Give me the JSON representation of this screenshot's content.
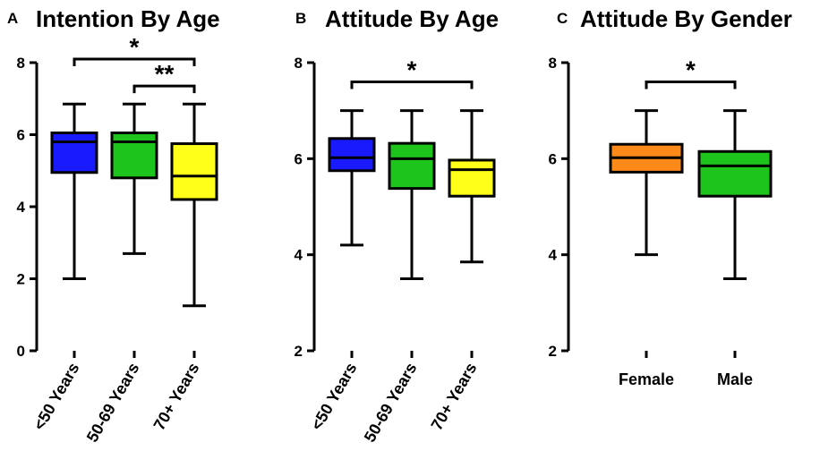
{
  "chart_data": [
    {
      "type": "box",
      "panel_letter": "A",
      "title": "Intention By Age",
      "ylim": [
        0,
        8
      ],
      "yticks": [
        0,
        2,
        4,
        6,
        8
      ],
      "categories": [
        "<50 Years",
        "50-69 Years",
        "70+ Years"
      ],
      "boxes": [
        {
          "name": "<50 Years",
          "min": 2.0,
          "q1": 4.95,
          "median": 5.8,
          "q3": 6.05,
          "max": 6.85,
          "color": "#1a1aff"
        },
        {
          "name": "50-69 Years",
          "min": 2.7,
          "q1": 4.8,
          "median": 5.8,
          "q3": 6.05,
          "max": 6.85,
          "color": "#1cc41c"
        },
        {
          "name": "70+ Years",
          "min": 1.25,
          "q1": 4.2,
          "median": 4.85,
          "q3": 5.75,
          "max": 6.85,
          "color": "#ffff1a"
        }
      ],
      "significance": [
        {
          "from": 0,
          "to": 2,
          "label": "*",
          "y": 8.1
        },
        {
          "from": 1,
          "to": 2,
          "label": "**",
          "y": 7.35
        }
      ]
    },
    {
      "type": "box",
      "panel_letter": "B",
      "title": "Attitude By Age",
      "ylim": [
        2,
        8
      ],
      "yticks": [
        2,
        4,
        6,
        8
      ],
      "categories": [
        "<50 Years",
        "50-69 Years",
        "70+ Years"
      ],
      "boxes": [
        {
          "name": "<50 Years",
          "min": 4.2,
          "q1": 5.75,
          "median": 6.02,
          "q3": 6.42,
          "max": 7.0,
          "color": "#1a1aff"
        },
        {
          "name": "50-69 Years",
          "min": 3.5,
          "q1": 5.38,
          "median": 6.0,
          "q3": 6.32,
          "max": 7.0,
          "color": "#1cc41c"
        },
        {
          "name": "70+ Years",
          "min": 3.85,
          "q1": 5.22,
          "median": 5.77,
          "q3": 5.97,
          "max": 7.0,
          "color": "#ffff1a"
        }
      ],
      "significance": [
        {
          "from": 0,
          "to": 2,
          "label": "*",
          "y": 7.6
        }
      ]
    },
    {
      "type": "box",
      "panel_letter": "C",
      "title": "Attitude By Gender",
      "ylim": [
        2,
        8
      ],
      "yticks": [
        2,
        4,
        6,
        8
      ],
      "categories": [
        "Female",
        "Male"
      ],
      "boxes": [
        {
          "name": "Female",
          "min": 4.0,
          "q1": 5.72,
          "median": 6.02,
          "q3": 6.3,
          "max": 7.0,
          "color": "#ff8a1a"
        },
        {
          "name": "Male",
          "min": 3.5,
          "q1": 5.22,
          "median": 5.85,
          "q3": 6.15,
          "max": 7.0,
          "color": "#1cc41c"
        }
      ],
      "significance": [
        {
          "from": 0,
          "to": 1,
          "label": "*",
          "y": 7.6
        }
      ]
    }
  ]
}
